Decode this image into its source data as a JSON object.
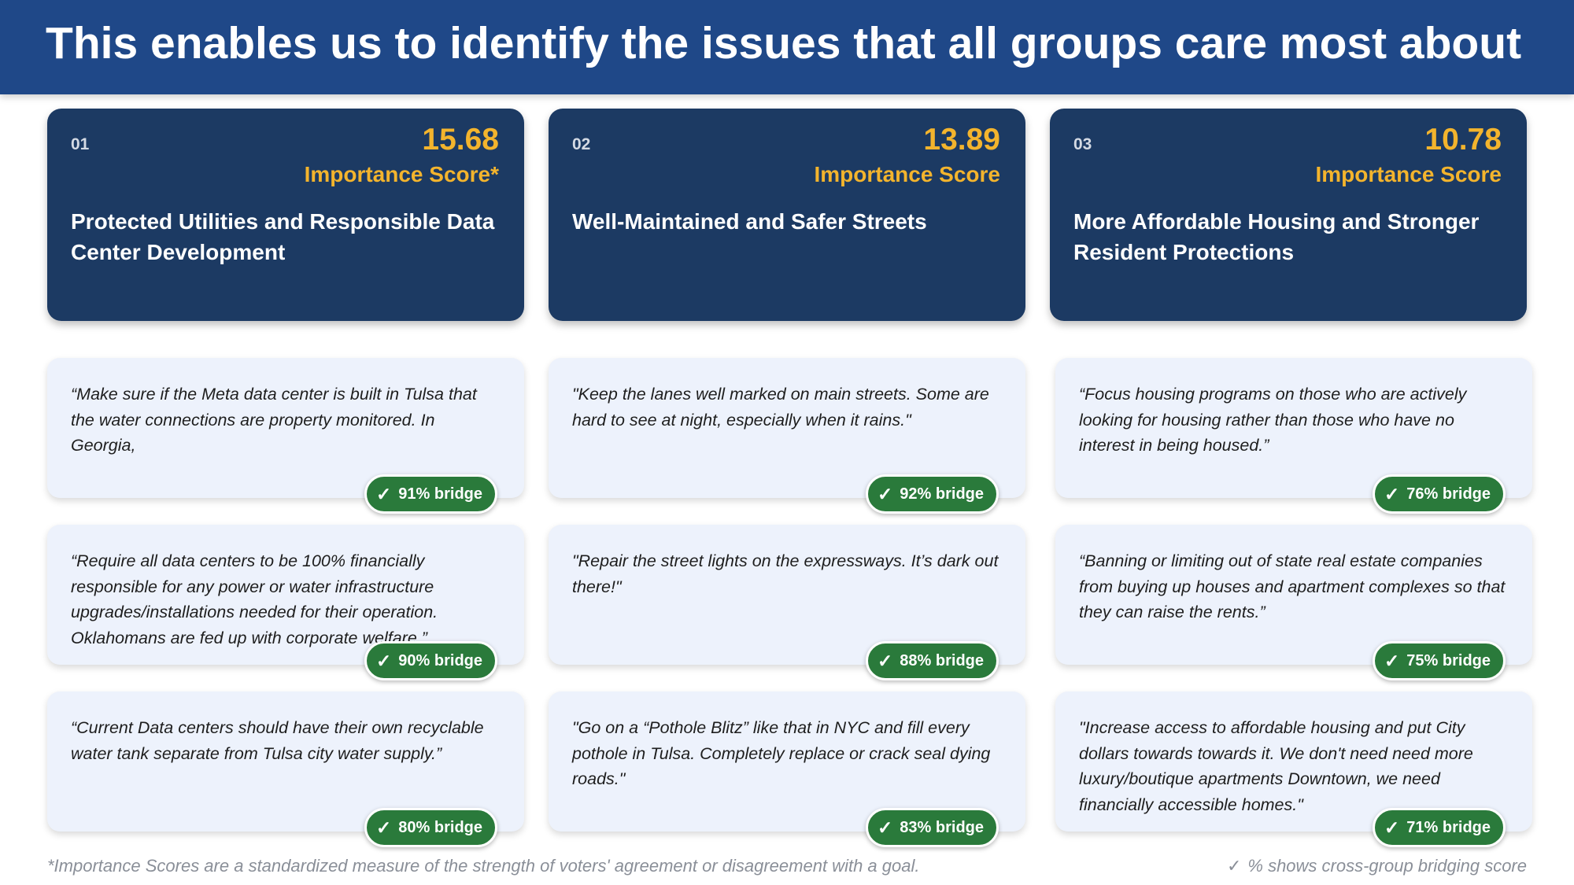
{
  "header": {
    "title": "This enables us to identify the issues that all groups care most about"
  },
  "topics": [
    {
      "number": "01",
      "score": "15.68",
      "score_label": "Importance Score*",
      "title": "Protected Utilities and Responsible Data Center Development",
      "quotes": [
        {
          "text": "“Make sure if the Meta data center is built in Tulsa that the water connections are property monitored. In Georgia,",
          "bridge": "91% bridge"
        },
        {
          "text": "“Require all data centers to be 100% financially responsible for any power or water infrastructure upgrades/installations needed for their operation. Oklahomans are fed up with corporate welfare.”",
          "bridge": "90% bridge"
        },
        {
          "text": "“Current Data centers should have their own recyclable water tank separate from Tulsa city water supply.”",
          "bridge": "80% bridge"
        }
      ]
    },
    {
      "number": "02",
      "score": "13.89",
      "score_label": "Importance Score",
      "title": "Well-Maintained and Safer Streets",
      "quotes": [
        {
          "text": "\"Keep the lanes well marked on main streets. Some are hard to see at night, especially when it rains.\"",
          "bridge": "92% bridge"
        },
        {
          "text": "\"Repair the street lights on the expressways. It’s dark out there!\"",
          "bridge": "88% bridge"
        },
        {
          "text": "\"Go on a “Pothole Blitz” like that in NYC and fill every pothole in Tulsa. Completely replace or crack seal dying roads.\"",
          "bridge": "83% bridge"
        }
      ]
    },
    {
      "number": "03",
      "score": "10.78",
      "score_label": "Importance Score",
      "title": "More Affordable Housing and Stronger Resident Protections",
      "quotes": [
        {
          "text": "“Focus housing programs on those who are actively looking for housing rather than those who have no interest in being housed.”",
          "bridge": "76% bridge"
        },
        {
          "text": "“Banning or limiting out of state real estate companies from buying up houses and apartment complexes so that they can raise the rents.”",
          "bridge": "75% bridge"
        },
        {
          "text": "\"Increase access to affordable housing and put City dollars towards towards it. We don't need need more luxury/boutique apartments Downtown, we need financially accessible homes.\"",
          "bridge": "71% bridge"
        }
      ]
    }
  ],
  "checkmark": "✓",
  "footer": {
    "footnote": "*Importance Scores are a standardized measure of the strength of voters' agreement or disagreement with a goal.",
    "legend": "% shows cross-group bridging score"
  },
  "colors": {
    "header_bg": "#1f4888",
    "topic_card_bg": "#1c3a63",
    "score_accent": "#f3b42d",
    "quote_card_bg": "#edf2fc",
    "bridge_badge": "#2a7a3b"
  }
}
